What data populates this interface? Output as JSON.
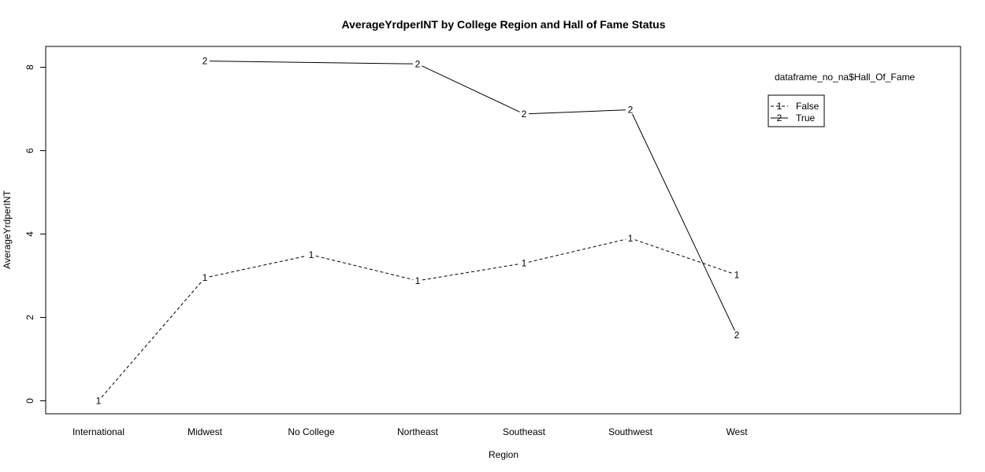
{
  "chart_data": {
    "type": "line",
    "title": "AverageYrdperINT by College Region and Hall of Fame Status",
    "xlabel": "Region",
    "ylabel": "AverageYrdperINT",
    "categories": [
      "International",
      "Midwest",
      "No College",
      "Northeast",
      "Southeast",
      "Southwest",
      "West"
    ],
    "ylim": [
      0,
      8
    ],
    "yticks": [
      "0",
      "2",
      "4",
      "6",
      "8"
    ],
    "grid": false,
    "legend": {
      "title": "dataframe_no_na$Hall_Of_Fame",
      "placement": "top-right",
      "entries": [
        {
          "symbol": "1",
          "label": "False"
        },
        {
          "symbol": "2",
          "label": "True"
        }
      ]
    },
    "series": [
      {
        "name": "False",
        "symbol": "1",
        "line_style": "dashed",
        "values": [
          0.0,
          2.95,
          3.5,
          2.88,
          3.3,
          3.9,
          3.02
        ]
      },
      {
        "name": "True",
        "symbol": "2",
        "line_style": "solid",
        "values": [
          null,
          8.15,
          null,
          8.08,
          6.88,
          6.98,
          1.58
        ]
      }
    ]
  }
}
